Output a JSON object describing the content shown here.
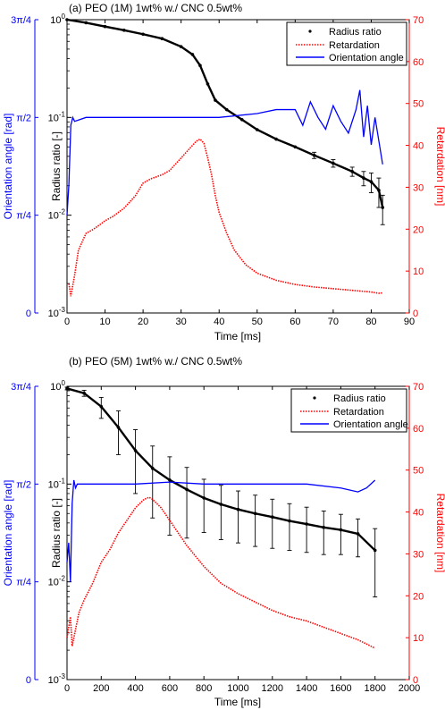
{
  "figure_background": "#ffffff",
  "chart_data": [
    {
      "type": "line",
      "title": "(a) PEO (1M) 1wt% w./ CNC 0.5wt%",
      "xlabel": "Time [ms]",
      "xlim": [
        0,
        90
      ],
      "xticks": [
        "0",
        "10",
        "20",
        "30",
        "40",
        "50",
        "60",
        "70",
        "80",
        "90"
      ],
      "ylabel_left_outer": "Orientation angle [rad]",
      "ylabel_left_inner": "Radius ratio [-]",
      "ylabel_right": "Retardation [nm]",
      "y_radius_log_range": [
        0.001,
        1
      ],
      "y_radius_ticks": [
        "10^-3",
        "10^-2",
        "10^-1",
        "10^0"
      ],
      "y_retardation_range": [
        0,
        70
      ],
      "y_retardation_ticks": [
        "0",
        "10",
        "20",
        "30",
        "40",
        "50",
        "60",
        "70"
      ],
      "y_orientation_range_over_pi": [
        0,
        0.75
      ],
      "y_orientation_ticks": [
        "0",
        "π/4",
        "π/2",
        "3π/4"
      ],
      "legend_position": "top-right",
      "legend": [
        "Radius ratio",
        "Retardation",
        "Orientation angle"
      ],
      "series": [
        {
          "name": "Radius ratio",
          "axis": "radius",
          "color": "#000000",
          "style": "dots-with-errorbars",
          "x": [
            0,
            5,
            10,
            15,
            20,
            25,
            30,
            33,
            35,
            37,
            39,
            42,
            46,
            50,
            55,
            60,
            65,
            70,
            75,
            78,
            80,
            82,
            83
          ],
          "y": [
            1.0,
            0.93,
            0.85,
            0.78,
            0.71,
            0.64,
            0.53,
            0.44,
            0.34,
            0.22,
            0.15,
            0.12,
            0.095,
            0.075,
            0.06,
            0.05,
            0.041,
            0.034,
            0.028,
            0.024,
            0.022,
            0.018,
            0.012
          ],
          "err": [
            0,
            0,
            0,
            0,
            0,
            0,
            0,
            0,
            0,
            0,
            0,
            0,
            0,
            0,
            0,
            0,
            0.003,
            0.003,
            0.003,
            0.004,
            0.005,
            0.006,
            0.004
          ]
        },
        {
          "name": "Retardation",
          "axis": "retardation",
          "color": "#ff0000",
          "style": "dotted",
          "x": [
            0.5,
            1,
            2,
            3,
            5,
            7,
            10,
            12,
            15,
            18,
            20,
            22,
            25,
            27,
            30,
            32,
            34,
            35,
            36,
            37,
            38,
            39,
            40,
            42,
            44,
            47,
            50,
            55,
            60,
            65,
            70,
            75,
            80,
            82,
            83
          ],
          "y": [
            7,
            4,
            9,
            15,
            19,
            20,
            22,
            23,
            25,
            28,
            31,
            32,
            33,
            34,
            37,
            39,
            41,
            41.5,
            40.5,
            37,
            33,
            28,
            24,
            19,
            15,
            11.5,
            9.5,
            7.8,
            6.8,
            6.2,
            5.8,
            5.4,
            5.0,
            4.7,
            4.8
          ]
        },
        {
          "name": "Orientation angle",
          "axis": "orientation",
          "color": "#0000ff",
          "style": "solid",
          "x": [
            0,
            0.5,
            1,
            1.5,
            2,
            5,
            10,
            20,
            30,
            40,
            50,
            55,
            60,
            62,
            64,
            66,
            68,
            70,
            72,
            74,
            76,
            77,
            78,
            79,
            80,
            81,
            82,
            83
          ],
          "y_over_pi": [
            0.25,
            0.33,
            0.48,
            0.5,
            0.49,
            0.5,
            0.5,
            0.5,
            0.5,
            0.5,
            0.51,
            0.52,
            0.52,
            0.48,
            0.54,
            0.5,
            0.47,
            0.53,
            0.49,
            0.46,
            0.52,
            0.57,
            0.45,
            0.53,
            0.43,
            0.5,
            0.44,
            0.38
          ]
        }
      ]
    },
    {
      "type": "line",
      "title": "(b) PEO (5M) 1wt% w./ CNC 0.5wt%",
      "xlabel": "Time [ms]",
      "xlim": [
        0,
        2000
      ],
      "xticks": [
        "0",
        "200",
        "400",
        "600",
        "800",
        "1000",
        "1200",
        "1400",
        "1600",
        "1800",
        "2000"
      ],
      "ylabel_left_outer": "Orientation angle [rad]",
      "ylabel_left_inner": "Radius ratio [-]",
      "ylabel_right": "Retardation [nm]",
      "y_radius_log_range": [
        0.001,
        1
      ],
      "y_radius_ticks": [
        "10^-3",
        "10^-2",
        "10^-1",
        "10^0"
      ],
      "y_retardation_range": [
        0,
        70
      ],
      "y_retardation_ticks": [
        "0",
        "10",
        "20",
        "30",
        "40",
        "50",
        "60",
        "70"
      ],
      "y_orientation_range_over_pi": [
        0,
        0.75
      ],
      "y_orientation_ticks": [
        "0",
        "π/4",
        "π/2",
        "3π/4"
      ],
      "legend_position": "top-right",
      "legend": [
        "Radius ratio",
        "Retardation",
        "Orientation angle"
      ],
      "series": [
        {
          "name": "Radius ratio",
          "axis": "radius",
          "color": "#000000",
          "style": "dots-with-errorbars",
          "x": [
            0,
            100,
            200,
            300,
            400,
            500,
            600,
            700,
            800,
            900,
            1000,
            1100,
            1200,
            1300,
            1400,
            1500,
            1600,
            1700,
            1800
          ],
          "y": [
            0.95,
            0.85,
            0.62,
            0.38,
            0.22,
            0.145,
            0.11,
            0.088,
            0.072,
            0.062,
            0.055,
            0.05,
            0.046,
            0.042,
            0.039,
            0.036,
            0.034,
            0.031,
            0.021
          ],
          "err": [
            0.03,
            0.06,
            0.15,
            0.18,
            0.14,
            0.1,
            0.08,
            0.06,
            0.04,
            0.035,
            0.03,
            0.027,
            0.024,
            0.021,
            0.019,
            0.017,
            0.015,
            0.013,
            0.014
          ]
        },
        {
          "name": "Retardation",
          "axis": "retardation",
          "color": "#ff0000",
          "style": "dotted",
          "x": [
            0,
            20,
            30,
            40,
            50,
            70,
            100,
            150,
            200,
            250,
            300,
            350,
            400,
            450,
            480,
            500,
            550,
            600,
            700,
            800,
            900,
            1000,
            1100,
            1200,
            1300,
            1400,
            1500,
            1600,
            1700,
            1800
          ],
          "y": [
            10,
            15,
            8,
            10,
            12,
            16,
            19,
            23,
            28,
            31,
            35,
            38,
            41,
            43,
            43.5,
            43,
            41,
            38,
            32,
            27,
            23,
            20.5,
            18.5,
            16.5,
            15,
            14,
            12.5,
            11,
            9.5,
            7.5
          ]
        },
        {
          "name": "Orientation angle",
          "axis": "orientation",
          "color": "#0000ff",
          "style": "solid",
          "x": [
            0,
            10,
            20,
            30,
            40,
            50,
            60,
            100,
            200,
            400,
            600,
            800,
            1000,
            1200,
            1400,
            1600,
            1700,
            1750,
            1800
          ],
          "y_over_pi": [
            0.3,
            0.35,
            0.25,
            0.45,
            0.51,
            0.49,
            0.5,
            0.5,
            0.5,
            0.5,
            0.505,
            0.5,
            0.5,
            0.5,
            0.5,
            0.49,
            0.48,
            0.49,
            0.51
          ]
        }
      ]
    }
  ]
}
